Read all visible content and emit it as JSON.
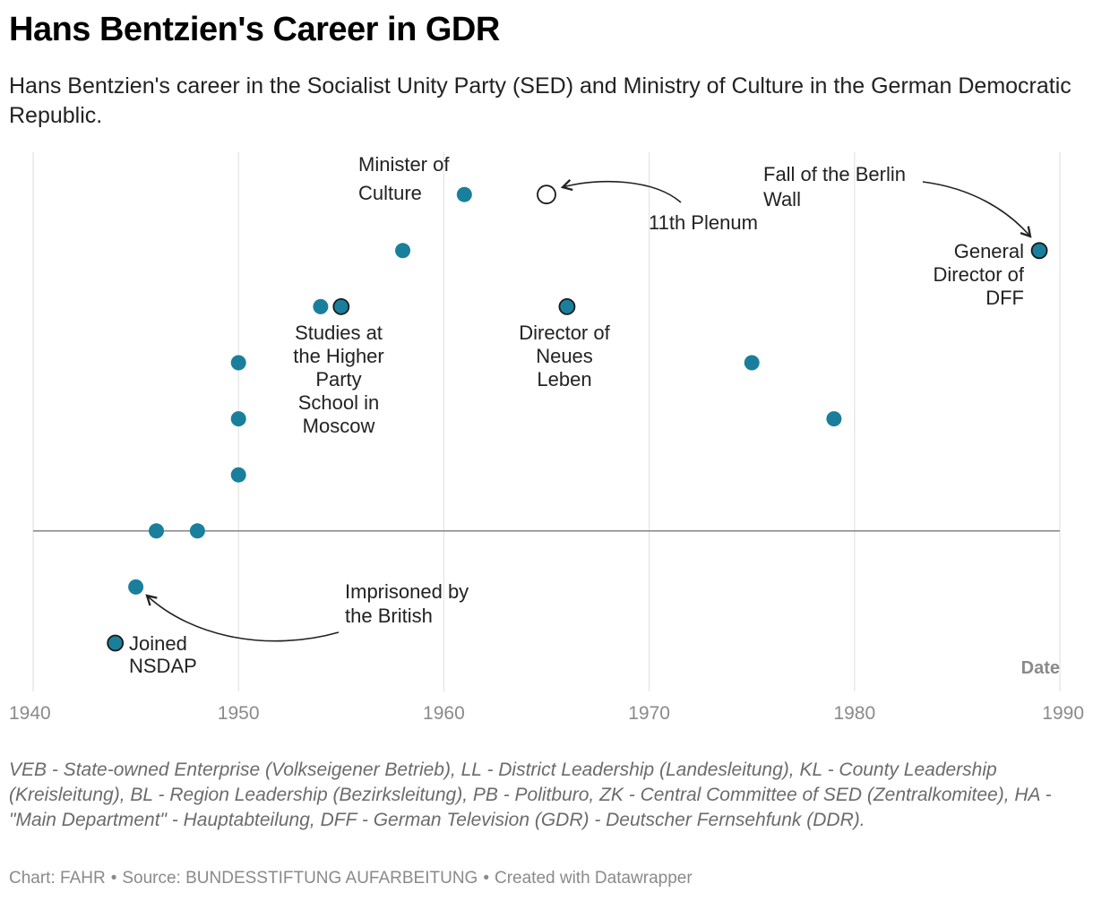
{
  "header": {
    "title": "Hans Bentzien's Career in GDR",
    "subtitle": "Hans Bentzien's career in the Socialist Unity Party (SED) and Ministry of Culture in the German Democratic Republic."
  },
  "chart_data": {
    "type": "scatter",
    "xlabel": "Date",
    "xlim": [
      1940,
      1990
    ],
    "x_ticks": [
      1940,
      1950,
      1960,
      1970,
      1980,
      1990
    ],
    "ylim": [
      -2,
      6
    ],
    "baseline_y": 0,
    "grid": true,
    "colors": {
      "point": "#1a7f9c",
      "outline": "#1a1a1a",
      "open_point": "#ffffff",
      "baseline": "#7a7a7a",
      "grid": "#e3e3e3"
    },
    "points": [
      {
        "x": 1944,
        "y": -2,
        "outlined": true
      },
      {
        "x": 1945,
        "y": -1
      },
      {
        "x": 1946,
        "y": 0
      },
      {
        "x": 1948,
        "y": 0
      },
      {
        "x": 1950,
        "y": 1
      },
      {
        "x": 1950,
        "y": 2
      },
      {
        "x": 1950,
        "y": 3
      },
      {
        "x": 1954,
        "y": 4
      },
      {
        "x": 1955,
        "y": 4,
        "outlined": true
      },
      {
        "x": 1958,
        "y": 5
      },
      {
        "x": 1961,
        "y": 6
      },
      {
        "x": 1965,
        "y": 6,
        "open": true
      },
      {
        "x": 1966,
        "y": 4,
        "outlined": true
      },
      {
        "x": 1975,
        "y": 3
      },
      {
        "x": 1979,
        "y": 2
      },
      {
        "x": 1989,
        "y": 5,
        "outlined": true
      }
    ],
    "annotations": [
      {
        "id": "nsdap",
        "lines": [
          "Joined",
          "NSDAP"
        ]
      },
      {
        "id": "prison",
        "lines": [
          "Imprisoned by",
          "the British"
        ]
      },
      {
        "id": "moscow",
        "lines": [
          "Studies at",
          "the Higher",
          "Party",
          "School in",
          "Moscow"
        ]
      },
      {
        "id": "minister",
        "lines": [
          "Minister of",
          "Culture"
        ]
      },
      {
        "id": "plenum",
        "lines": [
          "11th Plenum"
        ]
      },
      {
        "id": "neues",
        "lines": [
          "Director of",
          "Neues",
          "Leben"
        ]
      },
      {
        "id": "wall",
        "lines": [
          "Fall of the Berlin",
          "Wall"
        ]
      },
      {
        "id": "dff",
        "lines": [
          "General",
          "Director of",
          "DFF"
        ]
      }
    ]
  },
  "notes": "VEB - State-owned Enterprise (Volkseigener Betrieb), LL - District Leadership (Landesleitung), KL - County Leadership (Kreisleitung), BL - Region Leadership (Bezirksleitung), PB - Politburo, ZK - Central Committee of SED (Zentralkomitee), HA - \"Main Department\" - Hauptabteilung, DFF - German Television (GDR) - Deutscher Fernsehfunk (DDR).",
  "footer": {
    "chart_by": "Chart: FAHR",
    "source": "Source: BUNDESSTIFTUNG AUFARBEITUNG",
    "created": "Created with Datawrapper"
  }
}
